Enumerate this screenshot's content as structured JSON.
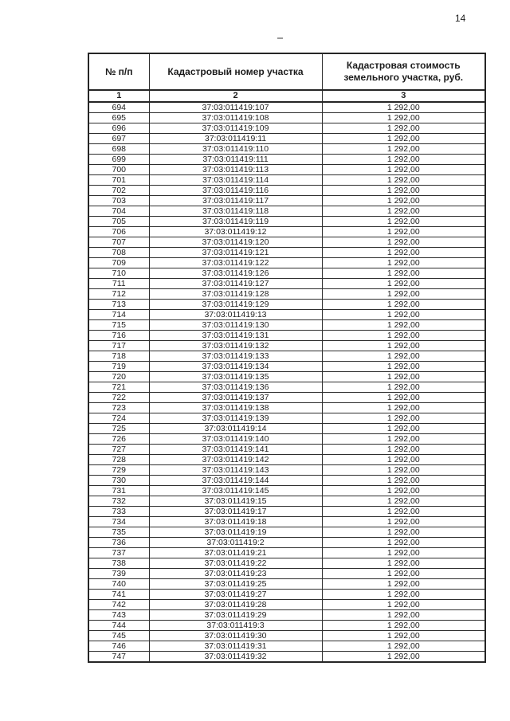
{
  "page": {
    "number": "14"
  },
  "table": {
    "headers": {
      "index": "№ п/п",
      "cadastral": "Кадастровый номер участка",
      "cost": "Кадастровая стоимость земельного участка, руб."
    },
    "column_numbers": [
      "1",
      "2",
      "3"
    ],
    "rows": [
      [
        "694",
        "37:03:011419:107",
        "1 292,00"
      ],
      [
        "695",
        "37:03:011419:108",
        "1 292,00"
      ],
      [
        "696",
        "37:03:011419:109",
        "1 292,00"
      ],
      [
        "697",
        "37:03:011419:11",
        "1 292,00"
      ],
      [
        "698",
        "37:03:011419:110",
        "1 292,00"
      ],
      [
        "699",
        "37:03:011419:111",
        "1 292,00"
      ],
      [
        "700",
        "37:03:011419:113",
        "1 292,00"
      ],
      [
        "701",
        "37:03:011419:114",
        "1 292,00"
      ],
      [
        "702",
        "37:03:011419:116",
        "1 292,00"
      ],
      [
        "703",
        "37:03:011419:117",
        "1 292,00"
      ],
      [
        "704",
        "37:03:011419:118",
        "1 292,00"
      ],
      [
        "705",
        "37:03:011419:119",
        "1 292,00"
      ],
      [
        "706",
        "37:03:011419:12",
        "1 292,00"
      ],
      [
        "707",
        "37:03:011419:120",
        "1 292,00"
      ],
      [
        "708",
        "37:03:011419:121",
        "1 292,00"
      ],
      [
        "709",
        "37:03:011419:122",
        "1 292,00"
      ],
      [
        "710",
        "37:03:011419:126",
        "1 292,00"
      ],
      [
        "711",
        "37:03:011419:127",
        "1 292,00"
      ],
      [
        "712",
        "37:03:011419:128",
        "1 292,00"
      ],
      [
        "713",
        "37:03:011419:129",
        "1 292,00"
      ],
      [
        "714",
        "37:03:011419:13",
        "1 292,00"
      ],
      [
        "715",
        "37:03:011419:130",
        "1 292,00"
      ],
      [
        "716",
        "37:03:011419:131",
        "1 292,00"
      ],
      [
        "717",
        "37:03:011419:132",
        "1 292,00"
      ],
      [
        "718",
        "37:03:011419:133",
        "1 292,00"
      ],
      [
        "719",
        "37:03:011419:134",
        "1 292,00"
      ],
      [
        "720",
        "37:03:011419:135",
        "1 292,00"
      ],
      [
        "721",
        "37:03:011419:136",
        "1 292,00"
      ],
      [
        "722",
        "37:03:011419:137",
        "1 292,00"
      ],
      [
        "723",
        "37:03:011419:138",
        "1 292,00"
      ],
      [
        "724",
        "37:03:011419:139",
        "1 292,00"
      ],
      [
        "725",
        "37:03:011419:14",
        "1 292,00"
      ],
      [
        "726",
        "37:03:011419:140",
        "1 292,00"
      ],
      [
        "727",
        "37:03:011419:141",
        "1 292,00"
      ],
      [
        "728",
        "37:03:011419:142",
        "1 292,00"
      ],
      [
        "729",
        "37:03:011419:143",
        "1 292,00"
      ],
      [
        "730",
        "37:03:011419:144",
        "1 292,00"
      ],
      [
        "731",
        "37:03:011419:145",
        "1 292,00"
      ],
      [
        "732",
        "37:03:011419:15",
        "1 292,00"
      ],
      [
        "733",
        "37:03:011419:17",
        "1 292,00"
      ],
      [
        "734",
        "37:03:011419:18",
        "1 292,00"
      ],
      [
        "735",
        "37:03:011419:19",
        "1 292,00"
      ],
      [
        "736",
        "37:03:011419:2",
        "1 292,00"
      ],
      [
        "737",
        "37:03:011419:21",
        "1 292,00"
      ],
      [
        "738",
        "37:03:011419:22",
        "1 292,00"
      ],
      [
        "739",
        "37:03:011419:23",
        "1 292,00"
      ],
      [
        "740",
        "37:03:011419:25",
        "1 292,00"
      ],
      [
        "741",
        "37:03:011419:27",
        "1 292,00"
      ],
      [
        "742",
        "37:03:011419:28",
        "1 292,00"
      ],
      [
        "743",
        "37:03:011419:29",
        "1 292,00"
      ],
      [
        "744",
        "37:03:011419:3",
        "1 292,00"
      ],
      [
        "745",
        "37:03:011419:30",
        "1 292,00"
      ],
      [
        "746",
        "37:03:011419:31",
        "1 292,00"
      ],
      [
        "747",
        "37:03:011419:32",
        "1 292,00"
      ]
    ]
  }
}
